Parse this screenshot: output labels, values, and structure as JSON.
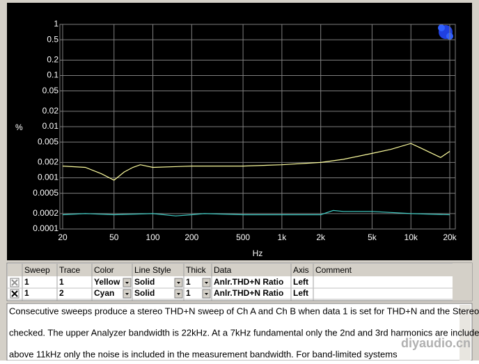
{
  "chart_data": {
    "type": "line",
    "x_label": "Hz",
    "y_label": "%",
    "x_log": true,
    "y_log": true,
    "grid": true,
    "xlim": [
      20,
      20000
    ],
    "ylim": [
      0.0001,
      1
    ],
    "xticks": [
      20,
      50,
      100,
      200,
      500,
      {
        "value": 1000,
        "label": "1k"
      },
      {
        "value": 2000,
        "label": "2k"
      },
      {
        "value": 5000,
        "label": "5k"
      },
      {
        "value": 10000,
        "label": "10k"
      },
      {
        "value": 20000,
        "label": "20k"
      }
    ],
    "yticks": [
      1,
      0.5,
      0.2,
      0.1,
      0.05,
      0.02,
      0.01,
      0.005,
      0.002,
      0.001,
      0.0005,
      0.0002,
      0.0001
    ],
    "series": [
      {
        "name": "Yellow",
        "color": "#ffffa0",
        "x": [
          20,
          30,
          40,
          50,
          60,
          70,
          80,
          100,
          200,
          500,
          1000,
          2000,
          3000,
          5000,
          7000,
          10000,
          12000,
          17000,
          20000
        ],
        "values": [
          0.0017,
          0.0016,
          0.0012,
          0.0009,
          0.0013,
          0.0016,
          0.0018,
          0.0016,
          0.0017,
          0.0017,
          0.0018,
          0.002,
          0.0023,
          0.003,
          0.0036,
          0.0047,
          0.0038,
          0.0025,
          0.0033
        ]
      },
      {
        "name": "Cyan",
        "color": "#40d0c8",
        "x": [
          20,
          30,
          50,
          100,
          150,
          200,
          250,
          500,
          1000,
          2000,
          2500,
          3000,
          5000,
          7000,
          10000,
          20000
        ],
        "values": [
          0.00019,
          0.0002,
          0.00019,
          0.0002,
          0.00018,
          0.00019,
          0.0002,
          0.00019,
          0.00019,
          0.00019,
          0.00023,
          0.00022,
          0.00022,
          0.00021,
          0.0002,
          0.00019
        ]
      }
    ]
  },
  "table": {
    "headers": [
      "Sweep",
      "Trace",
      "Color",
      "Line Style",
      "Thick",
      "Data",
      "Axis",
      "Comment"
    ],
    "rows": [
      [
        "1",
        "1",
        "Yellow",
        "Solid",
        "1",
        "Anlr.THD+N Ratio",
        "Left"
      ],
      [
        "1",
        "2",
        "Cyan",
        "Solid",
        "1",
        "Anlr.THD+N Ratio",
        "Left"
      ]
    ]
  },
  "notes": {
    "lines": [
      "Consecutive sweeps produce a stereo THD+N sweep of Ch A and Ch B when data 1 is set for THD+N and the Stereo box is",
      "checked.  The upper Analyzer bandwidth is 22kHz.  At a 7kHz fundamental only the 2nd and 3rd harmonics are included,",
      "above 11kHz only the noise is included in the measurement bandwidth.  For band-limited systems"
    ]
  },
  "watermark": "diyaudio.cn"
}
